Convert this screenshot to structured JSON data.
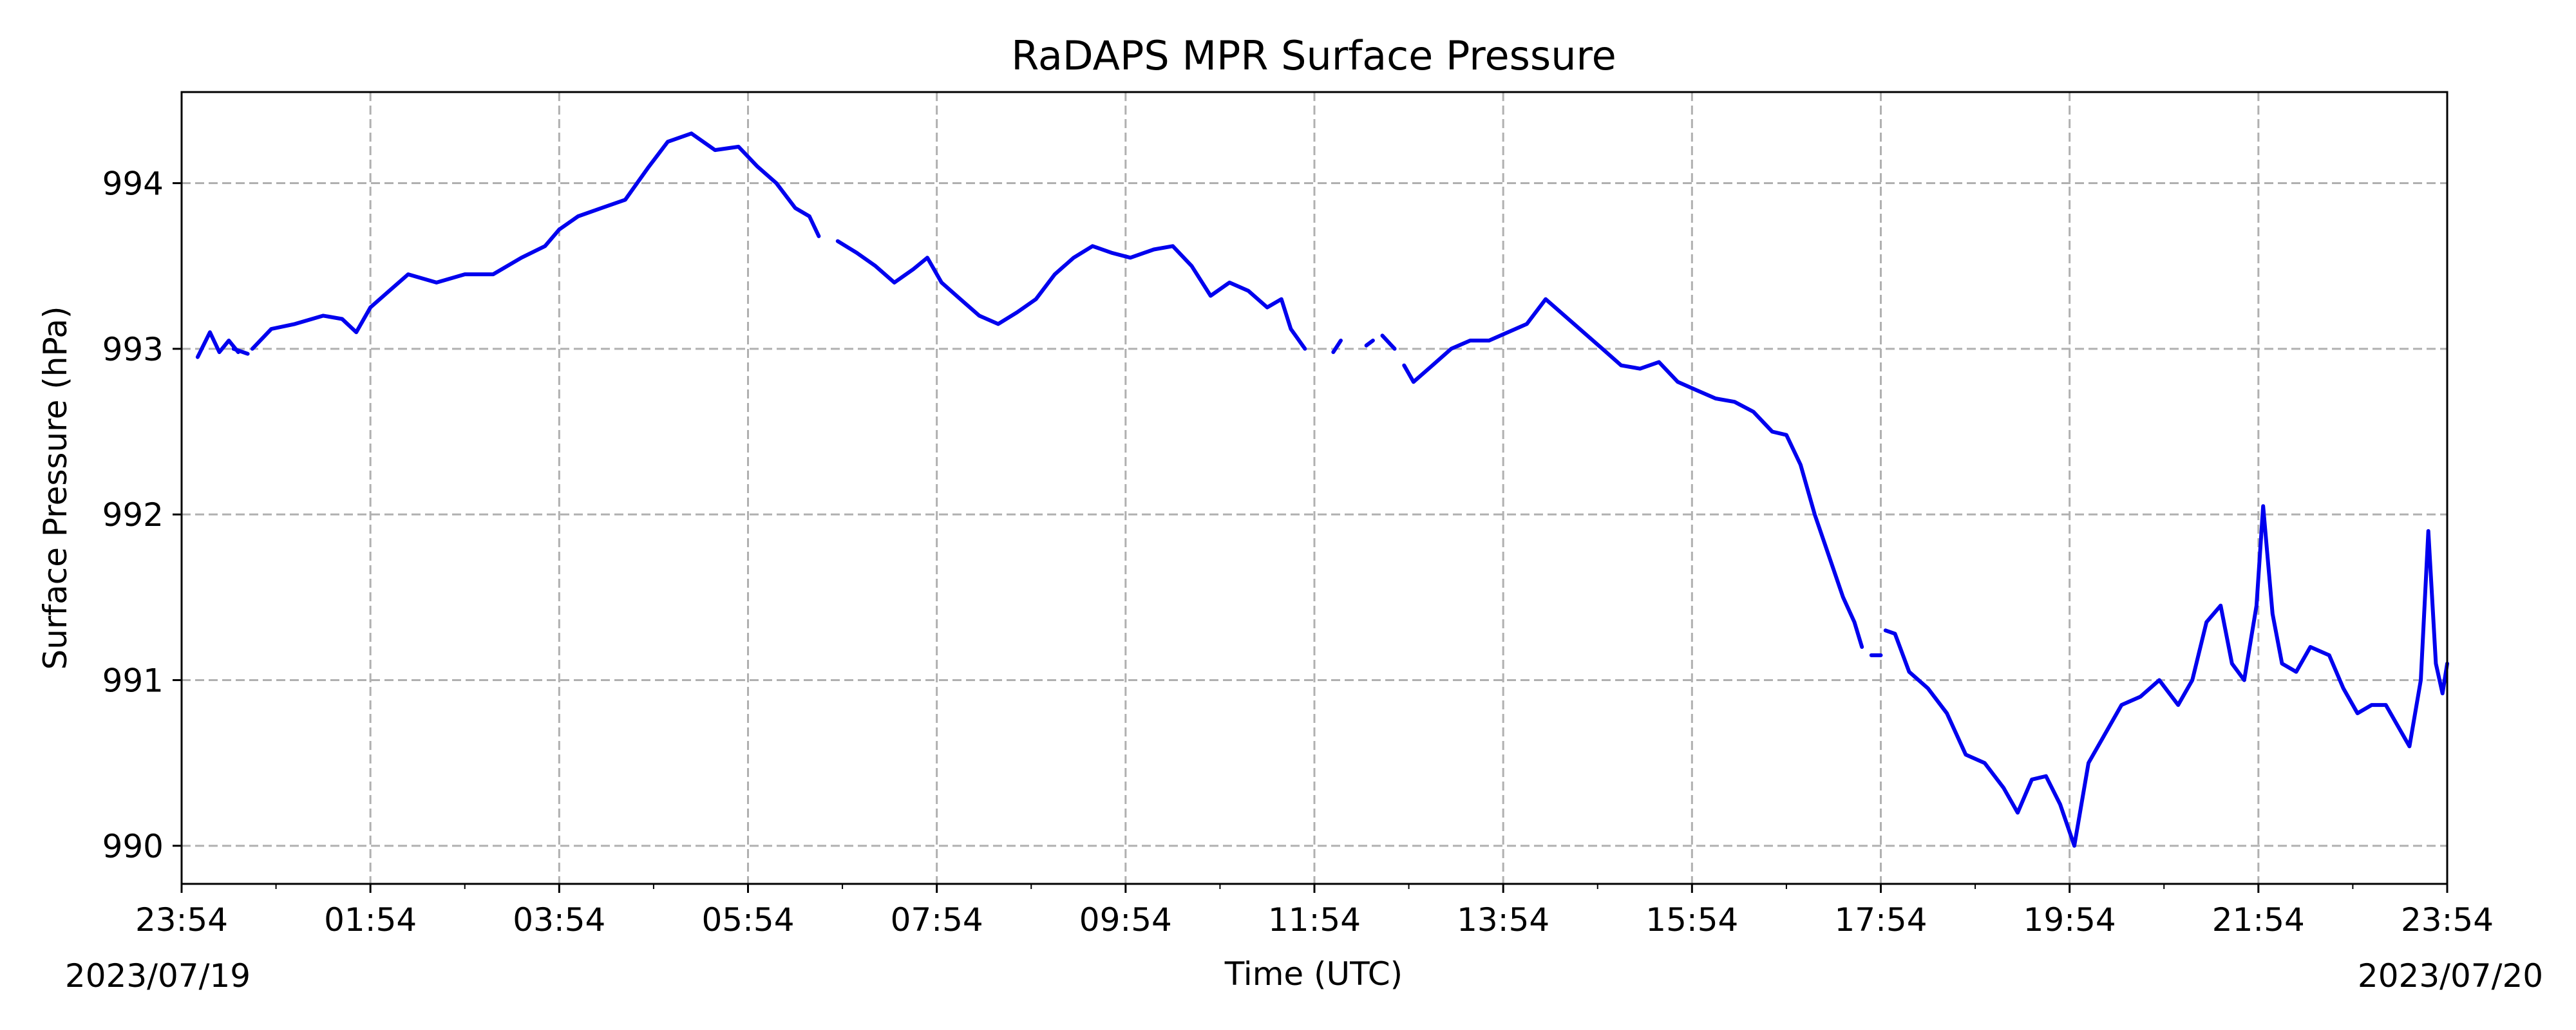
{
  "chart_data": {
    "type": "line",
    "title": "RaDAPS MPR Surface Pressure",
    "xlabel": "Time (UTC)",
    "ylabel": "Surface Pressure (hPa)",
    "start_date_label": "2023/07/19",
    "end_date_label": "2023/07/20",
    "x_unit": "hours",
    "xlim": [
      0,
      24
    ],
    "ylim": [
      989.77,
      994.55
    ],
    "x_ticks": [
      0,
      2,
      4,
      6,
      8,
      10,
      12,
      14,
      16,
      18,
      20,
      22,
      24
    ],
    "x_tick_labels": [
      "23:54",
      "01:54",
      "03:54",
      "05:54",
      "07:54",
      "09:54",
      "11:54",
      "13:54",
      "15:54",
      "17:54",
      "19:54",
      "21:54",
      "23:54"
    ],
    "y_ticks": [
      990,
      991,
      992,
      993,
      994
    ],
    "y_tick_labels": [
      "990",
      "991",
      "992",
      "993",
      "994"
    ],
    "grid": true,
    "legend": "none",
    "series": [
      {
        "color": "#0000ee",
        "segments": [
          [
            [
              0.17,
              992.95
            ],
            [
              0.3,
              993.1
            ],
            [
              0.4,
              992.98
            ],
            [
              0.5,
              993.05
            ],
            [
              0.6,
              992.98
            ]
          ],
          [
            [
              0.55,
              993.0
            ],
            [
              0.7,
              992.97
            ]
          ],
          [
            [
              0.75,
              993.0
            ],
            [
              0.95,
              993.12
            ],
            [
              1.2,
              993.15
            ],
            [
              1.5,
              993.2
            ],
            [
              1.7,
              993.18
            ],
            [
              1.85,
              993.1
            ],
            [
              2.0,
              993.25
            ],
            [
              2.2,
              993.35
            ],
            [
              2.4,
              993.45
            ],
            [
              2.7,
              993.4
            ],
            [
              3.0,
              993.45
            ],
            [
              3.3,
              993.45
            ],
            [
              3.6,
              993.55
            ],
            [
              3.85,
              993.62
            ],
            [
              4.0,
              993.72
            ],
            [
              4.2,
              993.8
            ],
            [
              4.45,
              993.85
            ],
            [
              4.7,
              993.9
            ],
            [
              4.95,
              994.1
            ],
            [
              5.15,
              994.25
            ],
            [
              5.4,
              994.3
            ],
            [
              5.65,
              994.2
            ],
            [
              5.9,
              994.22
            ],
            [
              6.1,
              994.1
            ],
            [
              6.3,
              994.0
            ],
            [
              6.5,
              993.85
            ],
            [
              6.65,
              993.8
            ],
            [
              6.75,
              993.68
            ]
          ],
          [
            [
              6.95,
              993.65
            ],
            [
              7.15,
              993.58
            ],
            [
              7.35,
              993.5
            ],
            [
              7.55,
              993.4
            ],
            [
              7.75,
              993.48
            ],
            [
              7.9,
              993.55
            ],
            [
              8.05,
              993.4
            ],
            [
              8.25,
              993.3
            ],
            [
              8.45,
              993.2
            ],
            [
              8.65,
              993.15
            ],
            [
              8.85,
              993.22
            ],
            [
              9.05,
              993.3
            ],
            [
              9.25,
              993.45
            ],
            [
              9.45,
              993.55
            ],
            [
              9.65,
              993.62
            ],
            [
              9.85,
              993.58
            ],
            [
              10.05,
              993.55
            ],
            [
              10.3,
              993.6
            ],
            [
              10.5,
              993.62
            ],
            [
              10.7,
              993.5
            ],
            [
              10.9,
              993.32
            ],
            [
              11.1,
              993.4
            ],
            [
              11.3,
              993.35
            ],
            [
              11.5,
              993.25
            ],
            [
              11.65,
              993.3
            ],
            [
              11.75,
              993.12
            ],
            [
              11.9,
              993.0
            ]
          ],
          [
            [
              12.2,
              992.98
            ],
            [
              12.28,
              993.05
            ]
          ],
          [
            [
              12.55,
              993.02
            ],
            [
              12.62,
              993.05
            ]
          ],
          [
            [
              12.72,
              993.08
            ],
            [
              12.85,
              993.0
            ]
          ],
          [
            [
              12.95,
              992.9
            ],
            [
              13.05,
              992.8
            ],
            [
              13.25,
              992.9
            ],
            [
              13.45,
              993.0
            ],
            [
              13.65,
              993.05
            ],
            [
              13.85,
              993.05
            ],
            [
              14.05,
              993.1
            ],
            [
              14.25,
              993.15
            ],
            [
              14.45,
              993.3
            ],
            [
              14.65,
              993.2
            ],
            [
              14.85,
              993.1
            ],
            [
              15.05,
              993.0
            ],
            [
              15.25,
              992.9
            ],
            [
              15.45,
              992.88
            ],
            [
              15.65,
              992.92
            ],
            [
              15.85,
              992.8
            ],
            [
              16.05,
              992.75
            ],
            [
              16.25,
              992.7
            ],
            [
              16.45,
              992.68
            ],
            [
              16.65,
              992.62
            ],
            [
              16.85,
              992.5
            ],
            [
              17.0,
              992.48
            ],
            [
              17.15,
              992.3
            ],
            [
              17.3,
              992.0
            ],
            [
              17.45,
              991.75
            ],
            [
              17.6,
              991.5
            ],
            [
              17.72,
              991.35
            ],
            [
              17.8,
              991.2
            ]
          ],
          [
            [
              17.9,
              991.15
            ],
            [
              18.0,
              991.15
            ]
          ],
          [
            [
              18.05,
              991.3
            ],
            [
              18.15,
              991.28
            ],
            [
              18.3,
              991.05
            ],
            [
              18.5,
              990.95
            ],
            [
              18.7,
              990.8
            ],
            [
              18.9,
              990.55
            ],
            [
              19.1,
              990.5
            ],
            [
              19.3,
              990.35
            ],
            [
              19.45,
              990.2
            ],
            [
              19.6,
              990.4
            ],
            [
              19.75,
              990.42
            ],
            [
              19.9,
              990.25
            ],
            [
              20.05,
              990.0
            ],
            [
              20.2,
              990.5
            ],
            [
              20.35,
              990.65
            ],
            [
              20.55,
              990.85
            ],
            [
              20.75,
              990.9
            ],
            [
              20.95,
              991.0
            ],
            [
              21.15,
              990.85
            ],
            [
              21.3,
              991.0
            ],
            [
              21.45,
              991.35
            ],
            [
              21.6,
              991.45
            ],
            [
              21.72,
              991.1
            ],
            [
              21.85,
              991.0
            ],
            [
              21.98,
              991.45
            ],
            [
              22.05,
              992.05
            ],
            [
              22.15,
              991.4
            ],
            [
              22.25,
              991.1
            ],
            [
              22.4,
              991.05
            ],
            [
              22.55,
              991.2
            ],
            [
              22.75,
              991.15
            ],
            [
              22.9,
              990.95
            ],
            [
              23.05,
              990.8
            ],
            [
              23.2,
              990.85
            ],
            [
              23.35,
              990.85
            ],
            [
              23.5,
              990.7
            ],
            [
              23.6,
              990.6
            ],
            [
              23.72,
              991.0
            ],
            [
              23.8,
              991.9
            ],
            [
              23.88,
              991.1
            ],
            [
              23.95,
              990.92
            ],
            [
              24.0,
              991.1
            ]
          ]
        ]
      }
    ]
  }
}
